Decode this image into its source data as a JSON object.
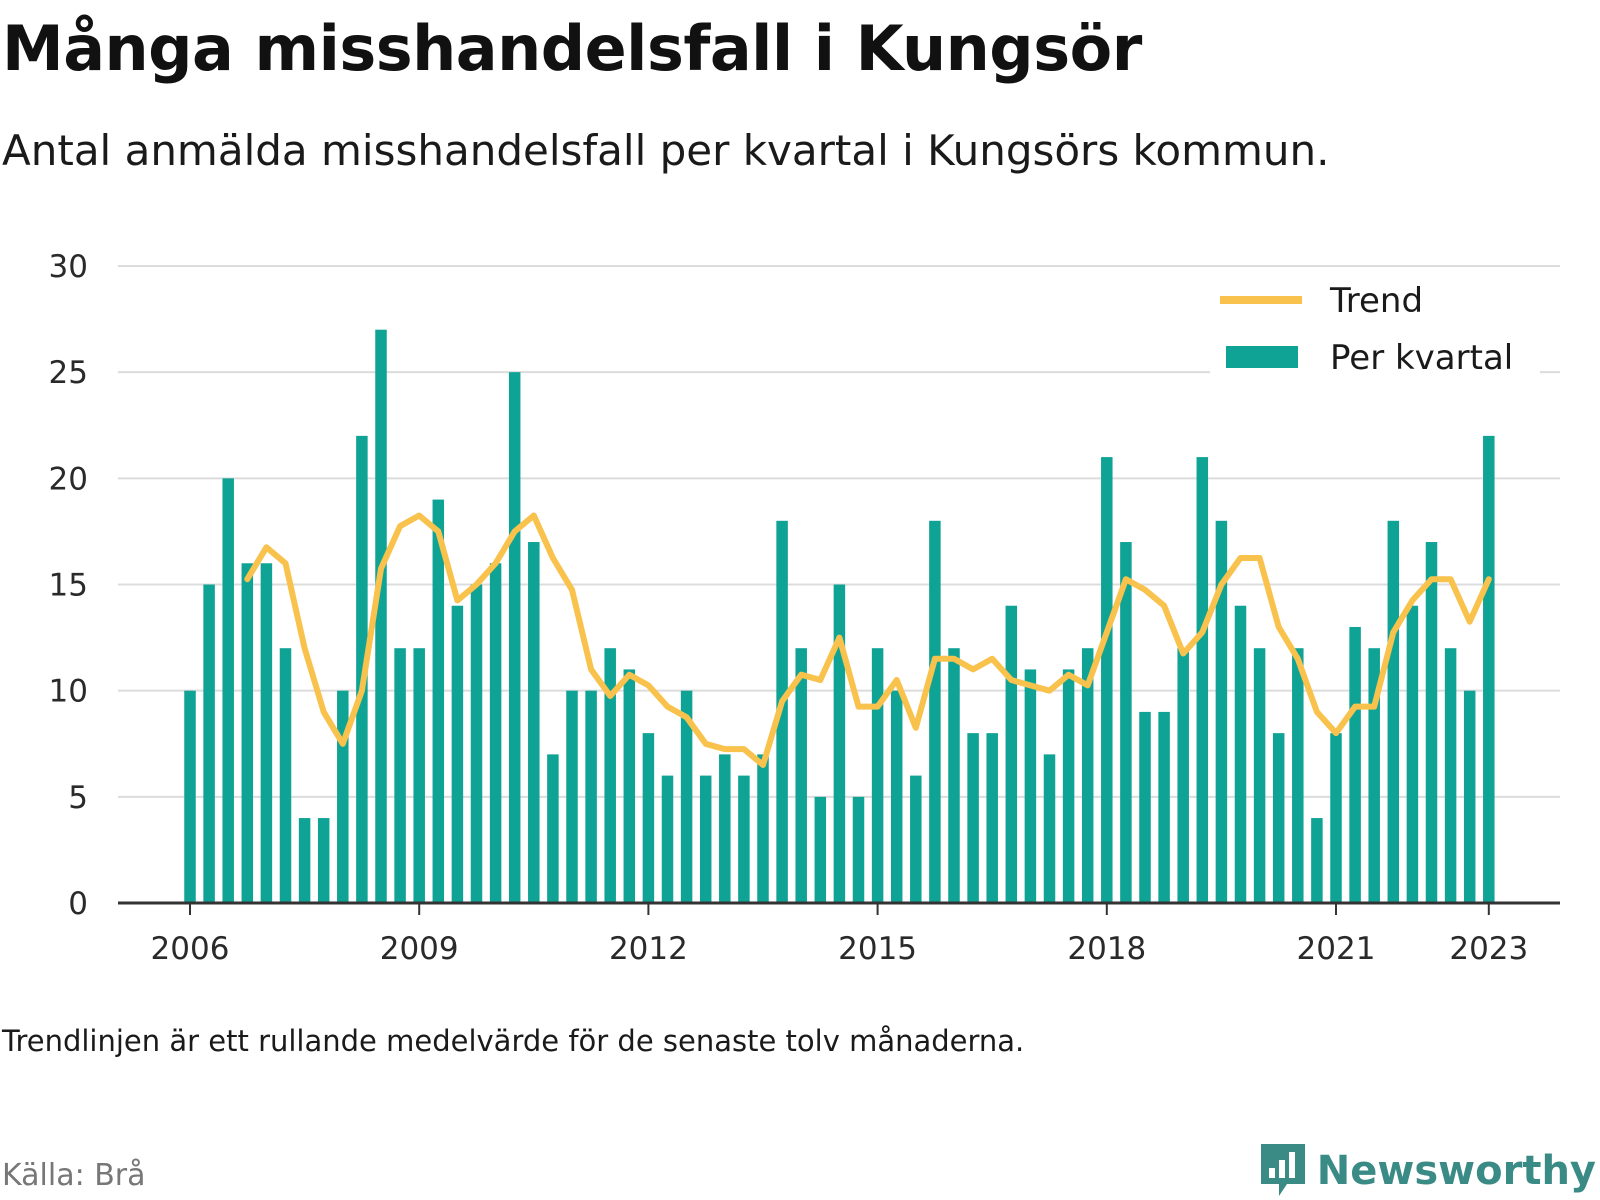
{
  "title": "Många misshandelsfall i Kungsör",
  "subtitle": "Antal anmälda misshandelsfall per kvartal i Kungsörs kommun.",
  "footnote": "Trendlinjen är ett rullande medelvärde för de senaste tolv månaderna.",
  "source": "Källa: Brå",
  "brand": {
    "name": "Newsworthy",
    "icon": "newsworthy-logo-icon"
  },
  "colors": {
    "bars": "#0fa396",
    "trend": "#f8c24c",
    "grid": "#dcdcdc",
    "axis": "#333333",
    "brand": "#3a8a86"
  },
  "legend": {
    "placement": "top-right",
    "items": [
      {
        "label": "Trend",
        "kind": "line",
        "color": "#f8c24c"
      },
      {
        "label": "Per kvartal",
        "kind": "bar",
        "color": "#0fa396"
      }
    ]
  },
  "chart_data": {
    "type": "bar",
    "title": "Många misshandelsfall i Kungsör",
    "subtitle": "Antal anmälda misshandelsfall per kvartal i Kungsörs kommun.",
    "xlabel": "",
    "ylabel": "",
    "ylim": [
      0,
      30
    ],
    "y_ticks": [
      0,
      5,
      10,
      15,
      20,
      25,
      30
    ],
    "x_ticks": [
      "2006",
      "2009",
      "2012",
      "2015",
      "2018",
      "2021",
      "2023"
    ],
    "grid": true,
    "legend": "top-right",
    "series": [
      {
        "name": "Per kvartal",
        "type": "bar",
        "start": "2006 Q1",
        "values": [
          10,
          15,
          20,
          16,
          16,
          12,
          4,
          4,
          10,
          22,
          27,
          12,
          12,
          19,
          14,
          15,
          16,
          25,
          17,
          7,
          10,
          10,
          12,
          11,
          8,
          6,
          10,
          6,
          7,
          6,
          7,
          18,
          12,
          5,
          15,
          5,
          12,
          10,
          6,
          18,
          12,
          8,
          8,
          14,
          11,
          7,
          11,
          12,
          21,
          17,
          9,
          9,
          12,
          21,
          18,
          14,
          12,
          8,
          12,
          4,
          8,
          13,
          12,
          18,
          14,
          17,
          12,
          10,
          22
        ]
      },
      {
        "name": "Trend",
        "type": "line",
        "start": "2006 Q4",
        "values": [
          15.25,
          16.75,
          16,
          12,
          9,
          7.5,
          10,
          15.75,
          17.75,
          18.25,
          17.5,
          14.25,
          15,
          16,
          17.5,
          18.25,
          16.25,
          14.75,
          11,
          9.75,
          10.75,
          10.25,
          9.25,
          8.75,
          7.5,
          7.25,
          7.25,
          6.5,
          9.5,
          10.75,
          10.5,
          12.5,
          9.25,
          9.25,
          10.5,
          8.25,
          11.5,
          11.5,
          11,
          11.5,
          10.5,
          10.25,
          10,
          10.75,
          10.25,
          12.75,
          15.25,
          14.75,
          14,
          11.75,
          12.75,
          15,
          16.25,
          16.25,
          13,
          11.5,
          9,
          8,
          9.25,
          9.25,
          12.75,
          14.25,
          15.25,
          15.25,
          13.25,
          15.25
        ]
      }
    ]
  }
}
